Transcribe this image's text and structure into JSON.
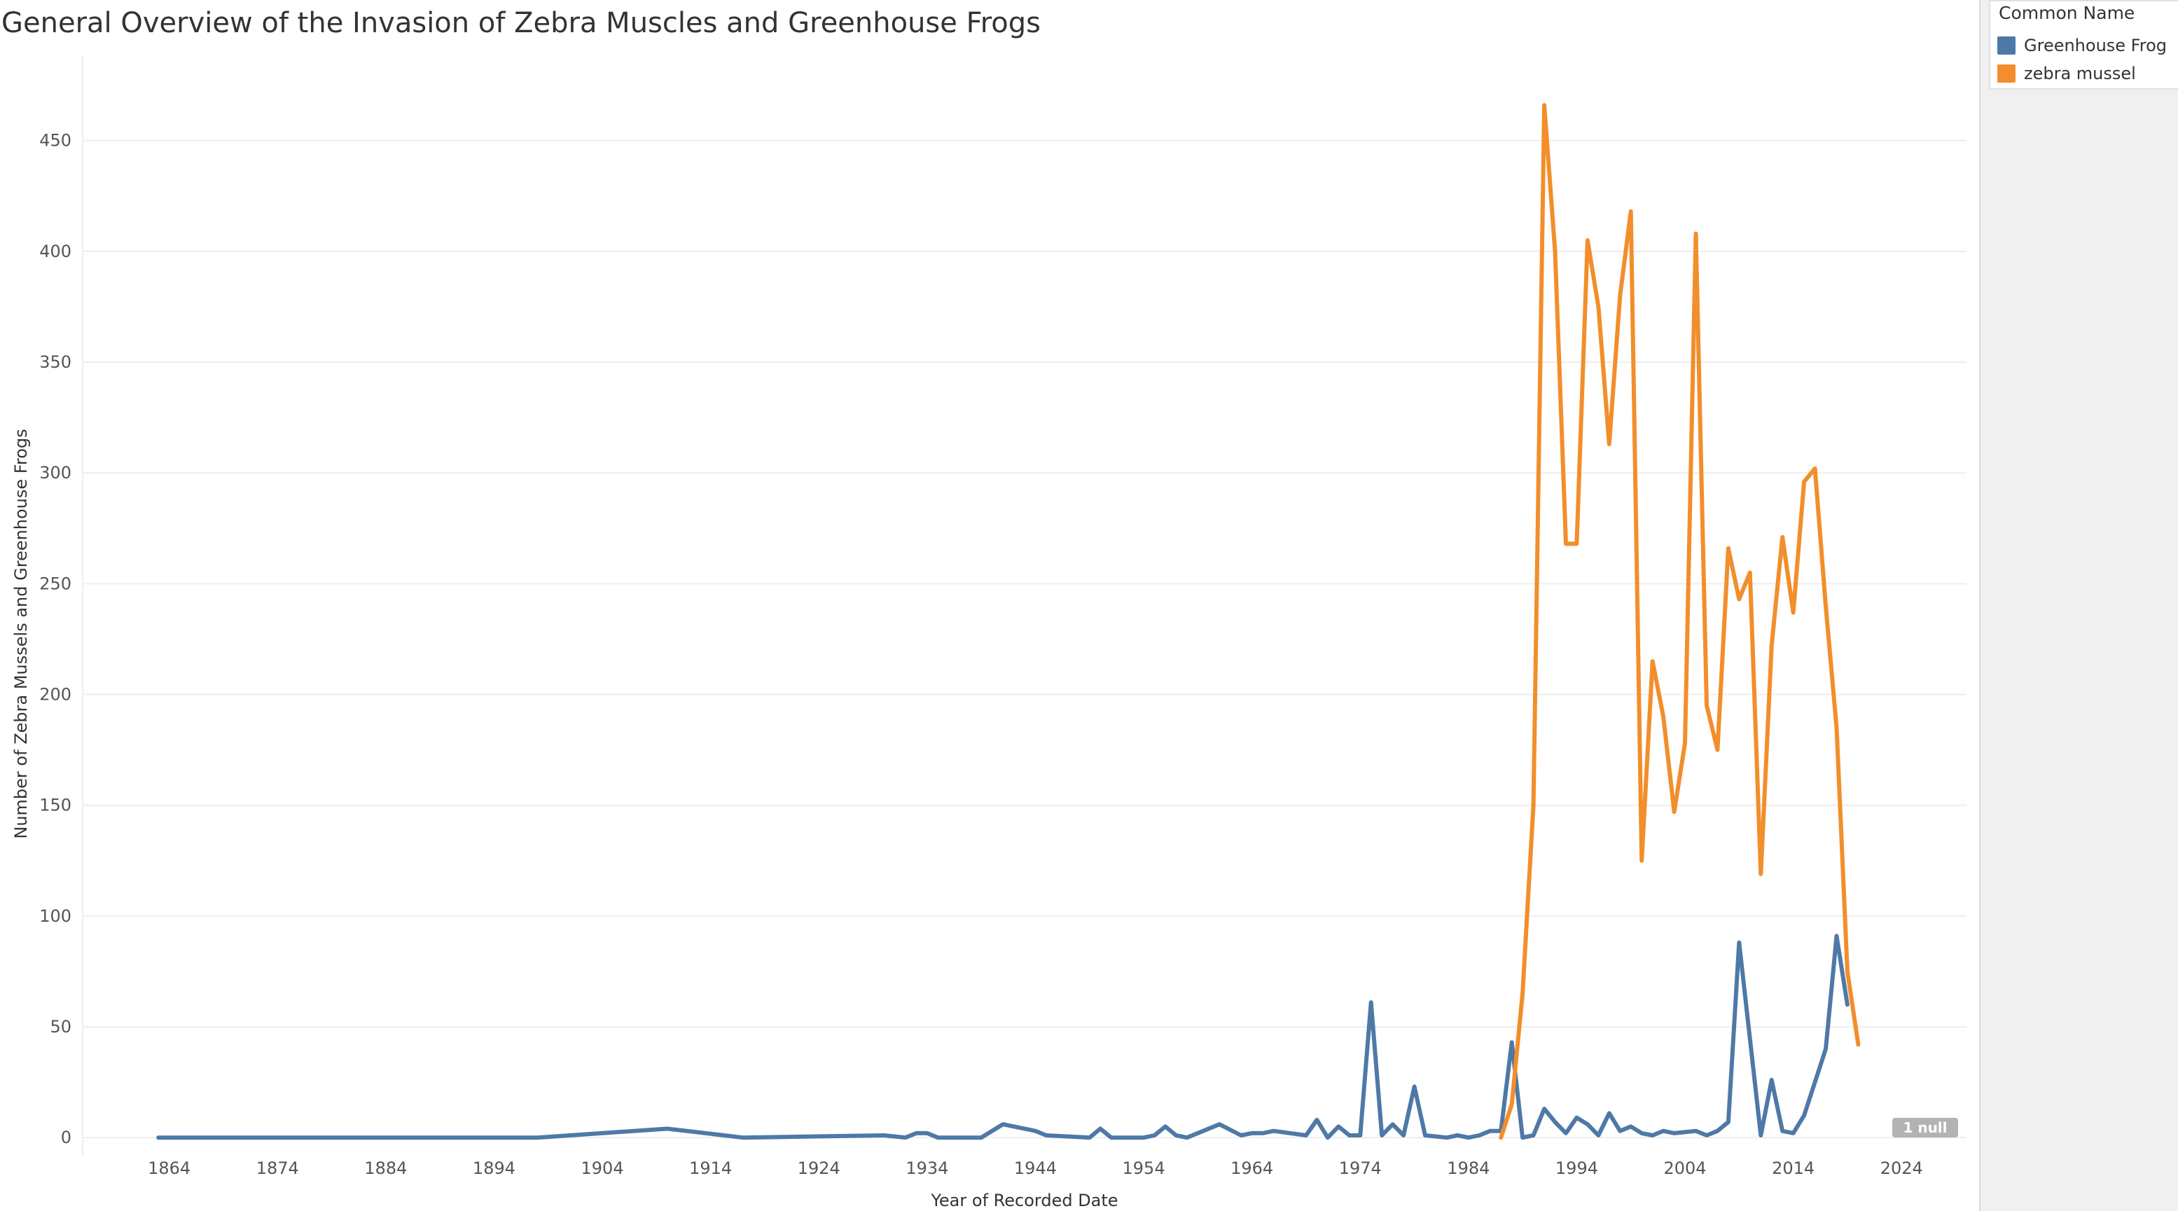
{
  "title": "General Overview of the Invasion of Zebra Muscles and Greenhouse Frogs",
  "legend": {
    "title": "Common Name",
    "items": [
      {
        "label": "Greenhouse Frog",
        "color": "#4e79a7"
      },
      {
        "label": "zebra mussel",
        "color": "#f28e2b"
      }
    ]
  },
  "null_badge": "1 null",
  "chart_data": {
    "type": "line",
    "xlabel": "Year of Recorded Date",
    "ylabel": "Number of Zebra Mussels and Greenhouse Frogs",
    "xlim": [
      1856,
      2030
    ],
    "ylim": [
      -5,
      485
    ],
    "x_ticks": [
      1864,
      1874,
      1884,
      1894,
      1904,
      1914,
      1924,
      1934,
      1944,
      1954,
      1964,
      1974,
      1984,
      1994,
      2004,
      2014,
      2024
    ],
    "y_ticks": [
      0,
      50,
      100,
      150,
      200,
      250,
      300,
      350,
      400,
      450
    ],
    "grid": "horizontal",
    "legend_position": "top-right",
    "series": [
      {
        "name": "Greenhouse Frog",
        "color": "#4e79a7",
        "points": [
          [
            1863,
            0
          ],
          [
            1898,
            0
          ],
          [
            1910,
            4
          ],
          [
            1917,
            0
          ],
          [
            1930,
            1
          ],
          [
            1932,
            0
          ],
          [
            1933,
            2
          ],
          [
            1934,
            2
          ],
          [
            1935,
            0
          ],
          [
            1939,
            0
          ],
          [
            1941,
            6
          ],
          [
            1944,
            3
          ],
          [
            1945,
            1
          ],
          [
            1949,
            0
          ],
          [
            1950,
            4
          ],
          [
            1951,
            0
          ],
          [
            1954,
            0
          ],
          [
            1955,
            1
          ],
          [
            1956,
            5
          ],
          [
            1957,
            1
          ],
          [
            1958,
            0
          ],
          [
            1961,
            6
          ],
          [
            1963,
            1
          ],
          [
            1964,
            2
          ],
          [
            1965,
            2
          ],
          [
            1966,
            3
          ],
          [
            1969,
            1
          ],
          [
            1970,
            8
          ],
          [
            1971,
            0
          ],
          [
            1972,
            5
          ],
          [
            1973,
            1
          ],
          [
            1974,
            1
          ],
          [
            1975,
            61
          ],
          [
            1976,
            1
          ],
          [
            1977,
            6
          ],
          [
            1978,
            1
          ],
          [
            1979,
            23
          ],
          [
            1980,
            1
          ],
          [
            1982,
            0
          ],
          [
            1983,
            1
          ],
          [
            1984,
            0
          ],
          [
            1985,
            1
          ],
          [
            1986,
            3
          ],
          [
            1987,
            3
          ],
          [
            1988,
            43
          ],
          [
            1989,
            0
          ],
          [
            1990,
            1
          ],
          [
            1991,
            13
          ],
          [
            1992,
            7
          ],
          [
            1993,
            2
          ],
          [
            1994,
            9
          ],
          [
            1995,
            6
          ],
          [
            1996,
            1
          ],
          [
            1997,
            11
          ],
          [
            1998,
            3
          ],
          [
            1999,
            5
          ],
          [
            2000,
            2
          ],
          [
            2001,
            1
          ],
          [
            2002,
            3
          ],
          [
            2003,
            2
          ],
          [
            2005,
            3
          ],
          [
            2006,
            1
          ],
          [
            2007,
            3
          ],
          [
            2008,
            7
          ],
          [
            2009,
            88
          ],
          [
            2011,
            1
          ],
          [
            2012,
            26
          ],
          [
            2013,
            3
          ],
          [
            2014,
            2
          ],
          [
            2015,
            10
          ],
          [
            2017,
            40
          ],
          [
            2018,
            91
          ],
          [
            2019,
            60
          ]
        ]
      },
      {
        "name": "zebra mussel",
        "color": "#f28e2b",
        "points": [
          [
            1987,
            0
          ],
          [
            1988,
            15
          ],
          [
            1989,
            65
          ],
          [
            1990,
            150
          ],
          [
            1991,
            466
          ],
          [
            1992,
            400
          ],
          [
            1993,
            268
          ],
          [
            1994,
            268
          ],
          [
            1995,
            405
          ],
          [
            1996,
            375
          ],
          [
            1997,
            313
          ],
          [
            1998,
            380
          ],
          [
            1999,
            418
          ],
          [
            2000,
            125
          ],
          [
            2001,
            215
          ],
          [
            2002,
            190
          ],
          [
            2003,
            147
          ],
          [
            2004,
            178
          ],
          [
            2005,
            408
          ],
          [
            2006,
            195
          ],
          [
            2007,
            175
          ],
          [
            2008,
            266
          ],
          [
            2009,
            243
          ],
          [
            2010,
            255
          ],
          [
            2011,
            119
          ],
          [
            2012,
            222
          ],
          [
            2013,
            271
          ],
          [
            2014,
            237
          ],
          [
            2015,
            296
          ],
          [
            2016,
            302
          ],
          [
            2017,
            240
          ],
          [
            2018,
            185
          ],
          [
            2019,
            75
          ],
          [
            2020,
            42
          ]
        ]
      }
    ]
  }
}
